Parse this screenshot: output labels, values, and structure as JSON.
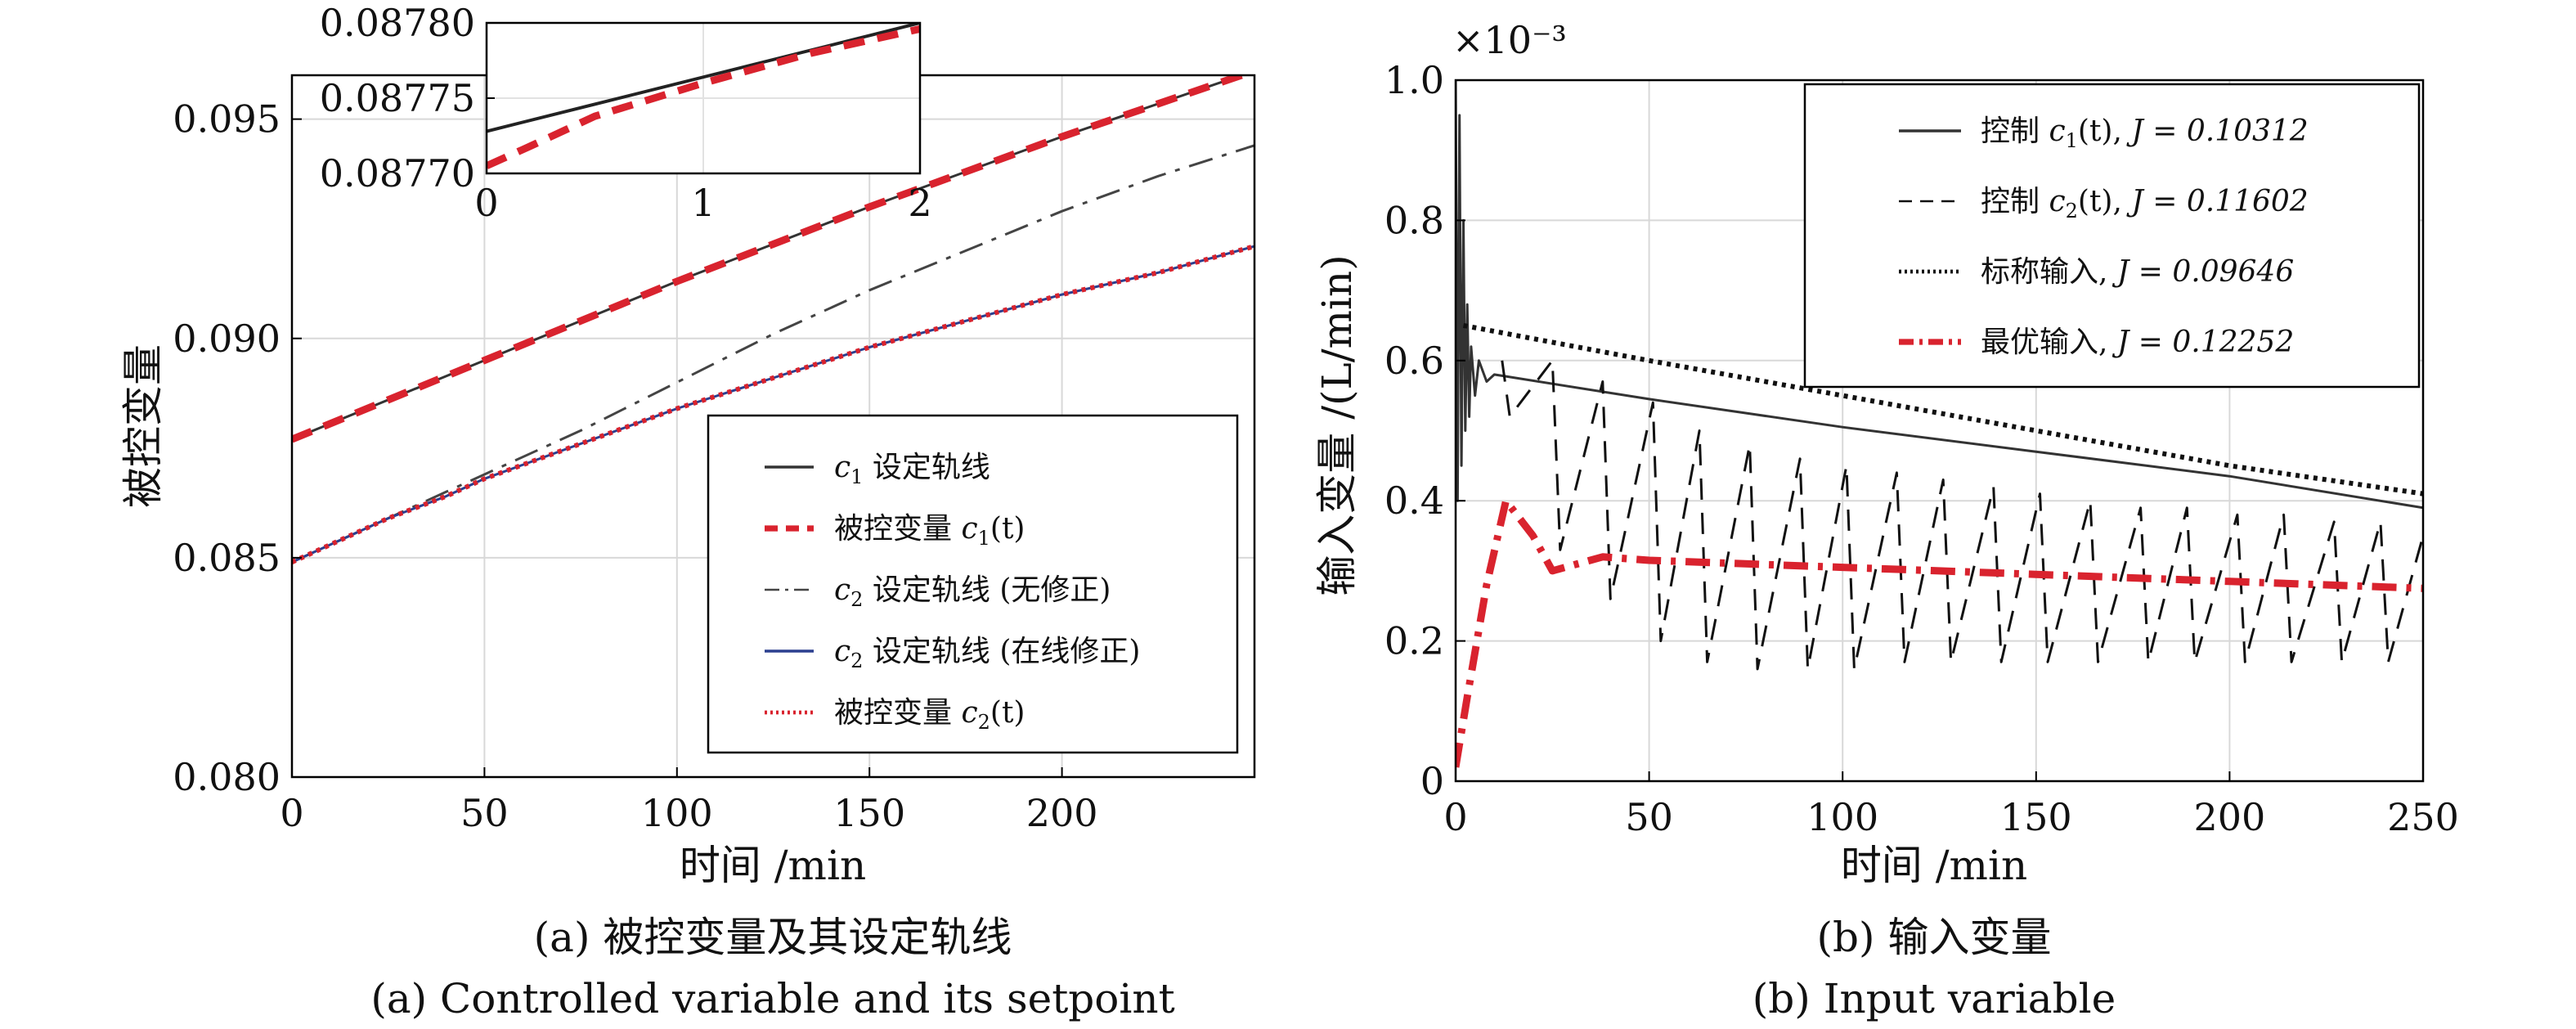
{
  "chart_data": [
    {
      "id": "a",
      "type": "line",
      "caption_cn": "(a) 被控变量及其设定轨线",
      "caption_en": "(a) Controlled variable and its setpoint",
      "xlabel": "时间 /min",
      "ylabel": "被控变量",
      "xlim": [
        0,
        250
      ],
      "ylim": [
        0.08,
        0.096
      ],
      "xticks": [
        "0",
        "50",
        "100",
        "150",
        "200"
      ],
      "yticks": [
        "0.080",
        "0.085",
        "0.090",
        "0.095"
      ],
      "grid": true,
      "legend_position": "lower-right",
      "series": [
        {
          "name": "c1 设定轨线",
          "color": "#333333",
          "style": "solid",
          "x": [
            0,
            50,
            100,
            150,
            200,
            250
          ],
          "y": [
            0.0877,
            0.0895,
            0.0913,
            0.093,
            0.0946,
            0.0961
          ]
        },
        {
          "name": "被控变量 c1(t)",
          "color": "#d9232e",
          "style": "dashed",
          "x": [
            0,
            50,
            100,
            150,
            200,
            250
          ],
          "y": [
            0.0877,
            0.0895,
            0.0913,
            0.093,
            0.0946,
            0.0961
          ]
        },
        {
          "name": "c2 设定轨线 (无修正)",
          "color": "#444444",
          "style": "dashdot",
          "x": [
            0,
            10,
            25,
            40,
            50,
            75,
            100,
            125,
            150,
            175,
            200,
            225,
            250
          ],
          "y": [
            0.0849,
            0.0853,
            0.0859,
            0.0865,
            0.0869,
            0.0879,
            0.089,
            0.0901,
            0.0911,
            0.092,
            0.0929,
            0.0937,
            0.0944
          ]
        },
        {
          "name": "c2 设定轨线 (在线修正)",
          "color": "#2b3f8f",
          "style": "solid",
          "x": [
            0,
            10,
            25,
            40,
            50,
            75,
            100,
            125,
            150,
            175,
            200,
            225,
            250
          ],
          "y": [
            0.0849,
            0.0853,
            0.0859,
            0.0864,
            0.0868,
            0.0876,
            0.0884,
            0.0891,
            0.0898,
            0.0904,
            0.091,
            0.0915,
            0.0921
          ]
        },
        {
          "name": "被控变量 c2(t)",
          "color": "#d9232e",
          "style": "dotted",
          "x": [
            0,
            10,
            25,
            40,
            50,
            75,
            100,
            125,
            150,
            175,
            200,
            225,
            250
          ],
          "y": [
            0.0849,
            0.0853,
            0.0859,
            0.0864,
            0.0868,
            0.0876,
            0.0884,
            0.0891,
            0.0898,
            0.0904,
            0.091,
            0.0915,
            0.0921
          ]
        }
      ],
      "legend": [
        {
          "sym": "c",
          "sub": "1",
          "text": "设定轨线",
          "style": "solid",
          "color": "#333333"
        },
        {
          "text": "被控变量 ",
          "sym": "c",
          "sub": "1",
          "arg": "(t)",
          "style": "dashed",
          "color": "#d9232e"
        },
        {
          "sym": "c",
          "sub": "2",
          "text": "设定轨线 (无修正)",
          "style": "dashdot",
          "color": "#444444"
        },
        {
          "sym": "c",
          "sub": "2",
          "text": "设定轨线 (在线修正)",
          "style": "solid",
          "color": "#2b3f8f"
        },
        {
          "text": "被控变量 ",
          "sym": "c",
          "sub": "2",
          "arg": "(t)",
          "style": "dotted",
          "color": "#d9232e"
        }
      ],
      "inset": {
        "xlim": [
          0,
          2
        ],
        "ylim": [
          0.0877,
          0.0878
        ],
        "xticks": [
          "0",
          "1",
          "2"
        ],
        "yticks": [
          "0.08770",
          "0.08775",
          "0.08780"
        ],
        "series": [
          {
            "name": "setpoint",
            "color": "#222222",
            "style": "solid",
            "x": [
              0,
              2
            ],
            "y": [
              0.087728,
              0.0878
            ]
          },
          {
            "name": "c1",
            "color": "#d9232e",
            "style": "dashed",
            "x": [
              0,
              0.2,
              0.5,
              1.0,
              1.5,
              2.0
            ],
            "y": [
              0.087705,
              0.087718,
              0.087738,
              0.08776,
              0.08778,
              0.087796
            ]
          }
        ]
      }
    },
    {
      "id": "b",
      "type": "line",
      "caption_cn": "(b) 输入变量",
      "caption_en": "(b) Input variable",
      "xlabel": "时间 /min",
      "ylabel": "输入变量 /(L/min)",
      "multiplier": "×10⁻³",
      "xlim": [
        0,
        250
      ],
      "ylim": [
        0,
        1.0
      ],
      "xticks": [
        "0",
        "50",
        "100",
        "150",
        "200",
        "250"
      ],
      "yticks": [
        "0",
        "0.2",
        "0.4",
        "0.6",
        "0.8",
        "1.0"
      ],
      "grid": true,
      "legend_position": "top-right",
      "series": [
        {
          "name": "控制 c1(t), J = 0.10312",
          "color": "#333333",
          "style": "solid",
          "x": [
            0,
            0.5,
            1,
            1.5,
            2,
            2.5,
            3,
            3.5,
            4,
            5,
            6,
            8,
            10,
            50,
            100,
            150,
            200,
            250
          ],
          "y": [
            1.0,
            0.4,
            0.95,
            0.45,
            0.8,
            0.5,
            0.68,
            0.52,
            0.62,
            0.55,
            0.6,
            0.57,
            0.58,
            0.545,
            0.505,
            0.47,
            0.435,
            0.39
          ]
        },
        {
          "name": "控制 c2(t), J = 0.11602",
          "color": "#111111",
          "style": "dashed",
          "x": [
            12,
            14,
            25,
            27,
            38,
            40,
            51,
            53,
            63,
            65,
            76,
            78,
            89,
            91,
            101,
            103,
            114,
            116,
            126,
            128,
            139,
            141,
            151,
            153,
            164,
            166,
            177,
            179,
            189,
            191,
            202,
            204,
            214,
            216,
            227,
            229,
            239,
            241,
            250
          ],
          "y": [
            0.6,
            0.52,
            0.6,
            0.33,
            0.57,
            0.26,
            0.54,
            0.2,
            0.5,
            0.17,
            0.48,
            0.16,
            0.46,
            0.16,
            0.45,
            0.16,
            0.44,
            0.17,
            0.43,
            0.17,
            0.42,
            0.17,
            0.41,
            0.17,
            0.4,
            0.17,
            0.39,
            0.17,
            0.39,
            0.17,
            0.38,
            0.17,
            0.38,
            0.17,
            0.37,
            0.17,
            0.37,
            0.17,
            0.35
          ]
        },
        {
          "name": "标称输入, J = 0.09646",
          "color": "#111111",
          "style": "dotted",
          "x": [
            2,
            50,
            100,
            150,
            200,
            250
          ],
          "y": [
            0.65,
            0.6,
            0.55,
            0.5,
            0.45,
            0.41
          ]
        },
        {
          "name": "最优输入, J = 0.12252",
          "color": "#d9232e",
          "style": "dashdot",
          "x": [
            0,
            3,
            8,
            13,
            20,
            25,
            38,
            50,
            100,
            150,
            200,
            250
          ],
          "y": [
            0.02,
            0.12,
            0.28,
            0.4,
            0.35,
            0.3,
            0.32,
            0.315,
            0.305,
            0.295,
            0.285,
            0.275
          ]
        }
      ],
      "legend": [
        {
          "text": "控制 ",
          "sym": "c",
          "sub": "1",
          "arg": "(t), ",
          "j": "J = 0.10312",
          "style": "solid",
          "color": "#333333"
        },
        {
          "text": "控制 ",
          "sym": "c",
          "sub": "2",
          "arg": "(t), ",
          "j": "J = 0.11602",
          "style": "dashed",
          "color": "#111111"
        },
        {
          "text": "标称输入, ",
          "j": "J = 0.09646",
          "style": "dotted",
          "color": "#111111"
        },
        {
          "text": "最优输入, ",
          "j": "J = 0.12252",
          "style": "dashdot",
          "color": "#d9232e"
        }
      ]
    }
  ]
}
